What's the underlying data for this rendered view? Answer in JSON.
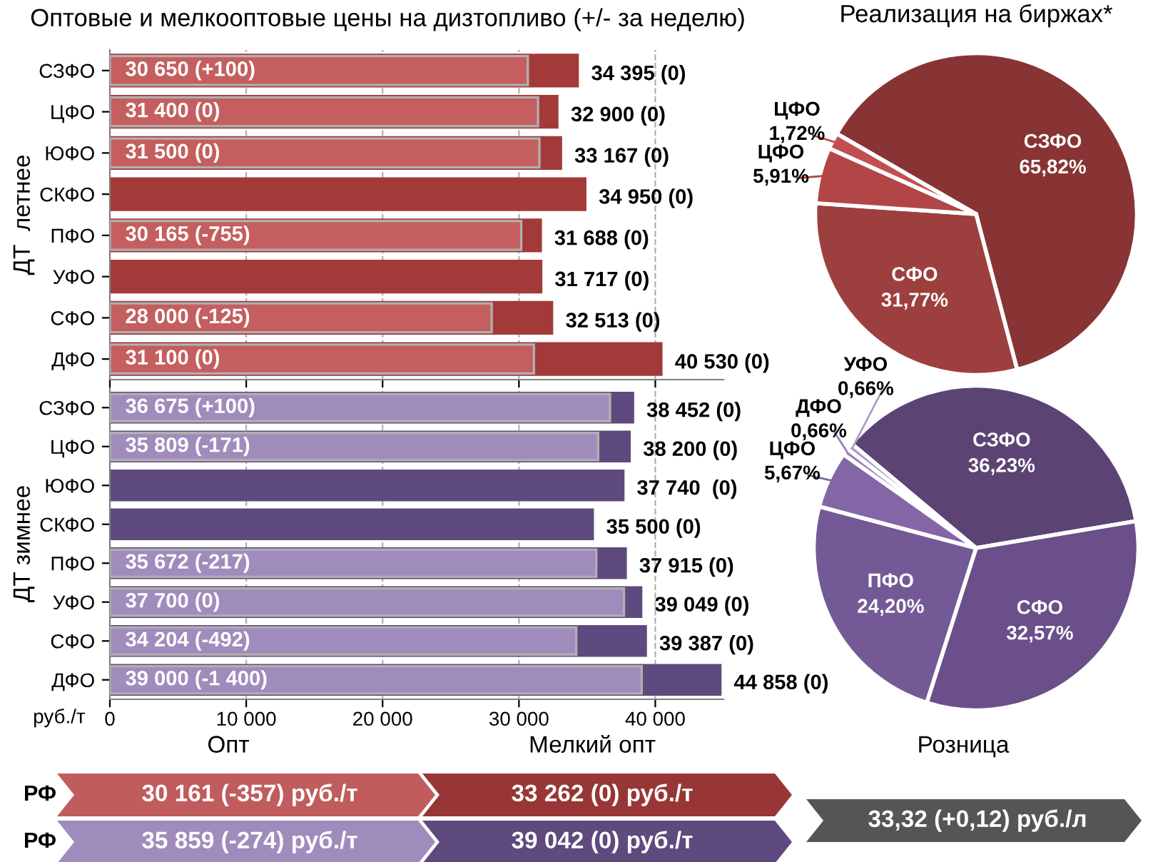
{
  "chart_data": [
    {
      "type": "bar",
      "orientation": "horizontal",
      "title": "Оптовые и мелкооптовые цены на дизтопливо (+/- за неделю)",
      "ylabel": "ДТ  летнее",
      "categories": [
        "СЗФО",
        "ЦФО",
        "ЮФО",
        "СКФО",
        "ПФО",
        "УФО",
        "СФО",
        "ДФО"
      ],
      "series": [
        {
          "color": "#a33a3a",
          "values": [
            34395,
            32900,
            33167,
            34950,
            31688,
            31717,
            32513,
            40530
          ],
          "value_labels": [
            "34 395 (0)",
            "32 900 (0)",
            "33 167 (0)",
            "34 950 (0)",
            "31 688 (0)",
            "31 717 (0)",
            "32 513 (0)",
            "40 530 (0)"
          ]
        },
        {
          "color": "#c55e5e",
          "values": [
            30650,
            31400,
            31500,
            null,
            30165,
            null,
            28000,
            31100
          ],
          "value_labels": [
            "30 650 (+100)",
            "31 400 (0)",
            "31 500 (0)",
            null,
            "30 165 (-755)",
            null,
            "28 000 (-125)",
            "31 100 (0)"
          ]
        }
      ],
      "xlim": [
        0,
        45000
      ],
      "xticks": [
        {
          "value": 0,
          "label": null
        },
        {
          "value": 10000,
          "label": null
        },
        {
          "value": 20000,
          "label": null
        },
        {
          "value": 30000,
          "label": null
        },
        {
          "value": 40000,
          "label": null
        }
      ],
      "grid": "x",
      "tick_labels": "y"
    },
    {
      "type": "bar",
      "orientation": "horizontal",
      "ylabel": "ДТ зимнее",
      "xlabel": "руб./т",
      "categories": [
        "СЗФО",
        "ЦФО",
        "ЮФО",
        "СКФО",
        "ПФО",
        "УФО",
        "СФО",
        "ДФО"
      ],
      "series": [
        {
          "color": "#5e4a7e",
          "values": [
            38452,
            38200,
            37740,
            35500,
            37915,
            39049,
            39387,
            44858
          ],
          "value_labels": [
            "38 452 (0)",
            "38 200 (0)",
            "37 740  (0)",
            "35 500 (0)",
            "37 915 (0)",
            "39 049 (0)",
            "39 387 (0)",
            "44 858 (0)"
          ]
        },
        {
          "color": "#a08cbc",
          "values": [
            36675,
            35809,
            null,
            null,
            35672,
            37700,
            34204,
            39000
          ],
          "value_labels": [
            "36 675 (+100)",
            "35 809 (-171)",
            null,
            null,
            "35 672 (-217)",
            "37 700 (0)",
            "34 204 (-492)",
            "39 000 (-1 400)"
          ]
        }
      ],
      "xlim": [
        0,
        45000
      ],
      "xticks": [
        0,
        {
          "value": 10000,
          "label": "10 000"
        },
        {
          "value": 20000,
          "label": "20 000"
        },
        {
          "value": 30000,
          "label": "30 000"
        },
        {
          "value": 40000,
          "label": "40 000"
        }
      ],
      "grid": "x"
    },
    {
      "type": "pie",
      "title": "Реализация на биржах*",
      "categories": [
        "СЗФО",
        "СФО",
        "ЦФО",
        "ЦФО"
      ],
      "values": [
        65.82,
        31.77,
        5.91,
        1.72
      ],
      "colors": [
        "#883434",
        "#9e3f3f",
        "#b24646",
        "#c05050"
      ],
      "value_labels": [
        "65,82%",
        "31,77%",
        "5,91%",
        "1,72%"
      ]
    },
    {
      "type": "pie",
      "categories": [
        "СЗФО",
        "СФО",
        "ПФО",
        "ЦФО",
        "ДФО",
        "УФО"
      ],
      "values": [
        36.23,
        32.57,
        24.2,
        5.67,
        0.66,
        0.66
      ],
      "colors": [
        "#5b4374",
        "#6a4f8a",
        "#735a96",
        "#8466a6",
        "#9a80b8",
        "#b09ac8"
      ],
      "value_labels": [
        "36,23%",
        "32,57%",
        "24,20%",
        "5,67%",
        "0,66%",
        "0,66%"
      ]
    },
    {
      "type": "other",
      "annotations": [
        "Опт",
        "Мелкий опт",
        "Розница",
        "РФ",
        "30 161 (-357) руб./т",
        "33 262 (0) руб./т",
        "РФ",
        "35 859 (-274) руб./т",
        "39 042 (0) руб./т",
        "33,32 (+0,12) руб./л"
      ],
      "colors": [
        "#c05c5c",
        "#983636",
        "#a08cbc",
        "#5e4a7e",
        "#555555"
      ]
    }
  ]
}
